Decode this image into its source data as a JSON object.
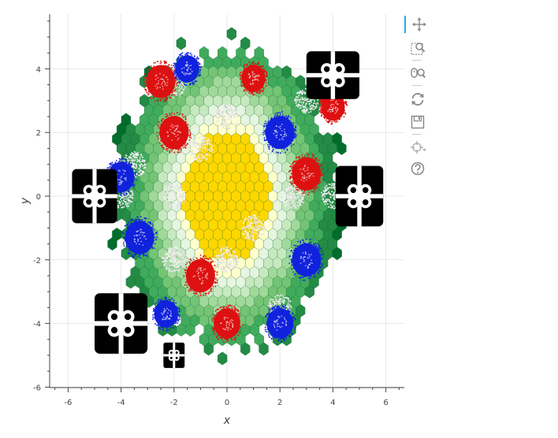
{
  "chart_data": {
    "type": "heatmap",
    "xlabel": "x",
    "ylabel": "y",
    "xlim": [
      -6.7,
      6.7
    ],
    "ylim": [
      -6.2,
      5.7
    ],
    "x_ticks": [
      -6,
      -4,
      -2,
      0,
      2,
      4,
      6
    ],
    "y_ticks": [
      -6,
      -4,
      -2,
      0,
      2,
      4
    ],
    "grid": true,
    "hex_palette": [
      "#00441b",
      "#006d2c",
      "#238b45",
      "#41ab5d",
      "#74c476",
      "#a1d99b",
      "#c7e9c0",
      "#e5f5e0",
      "#ffffcc",
      "#ffd700"
    ],
    "tree_radius": 4.3,
    "ornaments": [
      {
        "x": -2.5,
        "y": 3.6,
        "r": 0.55,
        "color": "#dd1111"
      },
      {
        "x": -1.5,
        "y": 4.0,
        "r": 0.45,
        "color": "#1122dd"
      },
      {
        "x": 1.0,
        "y": 3.7,
        "r": 0.45,
        "color": "#dd1111"
      },
      {
        "x": -2.0,
        "y": 2.0,
        "r": 0.55,
        "color": "#dd1111"
      },
      {
        "x": 2.0,
        "y": 2.0,
        "r": 0.55,
        "color": "#1122dd"
      },
      {
        "x": 4.0,
        "y": 2.8,
        "r": 0.45,
        "color": "#dd1111"
      },
      {
        "x": 3.0,
        "y": 0.7,
        "r": 0.55,
        "color": "#dd1111"
      },
      {
        "x": -4.0,
        "y": 0.6,
        "r": 0.5,
        "color": "#1122dd"
      },
      {
        "x": -3.3,
        "y": -1.3,
        "r": 0.55,
        "color": "#1122dd"
      },
      {
        "x": 3.0,
        "y": -2.0,
        "r": 0.55,
        "color": "#1122dd"
      },
      {
        "x": -1.0,
        "y": -2.5,
        "r": 0.55,
        "color": "#dd1111"
      },
      {
        "x": -2.3,
        "y": -3.7,
        "r": 0.45,
        "color": "#1122dd"
      },
      {
        "x": 0.0,
        "y": -4.0,
        "r": 0.5,
        "color": "#dd1111"
      },
      {
        "x": 2.0,
        "y": -4.0,
        "r": 0.5,
        "color": "#1122dd"
      }
    ],
    "snow": [
      {
        "x": 0.0,
        "y": 2.5
      },
      {
        "x": -1.0,
        "y": 1.5
      },
      {
        "x": -3.5,
        "y": 1.0
      },
      {
        "x": -4.0,
        "y": 0.0
      },
      {
        "x": -2.0,
        "y": 0.0
      },
      {
        "x": 2.5,
        "y": 0.0
      },
      {
        "x": 4.0,
        "y": 0.0
      },
      {
        "x": 1.0,
        "y": -1.0
      },
      {
        "x": -2.0,
        "y": -2.0
      },
      {
        "x": 0.0,
        "y": -2.0
      },
      {
        "x": 3.0,
        "y": 3.0
      },
      {
        "x": -2.0,
        "y": 3.5
      },
      {
        "x": 2.0,
        "y": -3.5
      },
      {
        "x": 0.0,
        "y": 0.0
      }
    ],
    "presents": [
      {
        "x": 4.0,
        "y": 3.8,
        "w": 2.0,
        "h": 1.5
      },
      {
        "x": -5.0,
        "y": 0.0,
        "w": 1.7,
        "h": 1.7
      },
      {
        "x": 5.0,
        "y": 0.0,
        "w": 1.8,
        "h": 1.9
      },
      {
        "x": -4.0,
        "y": -4.0,
        "w": 2.0,
        "h": 1.9
      },
      {
        "x": -2.0,
        "y": -5.0,
        "w": 0.8,
        "h": 0.8
      }
    ]
  },
  "toolbar": {
    "tools": [
      {
        "name": "pan-tool",
        "icon": "move-icon",
        "active": true
      },
      {
        "name": "box-zoom-tool",
        "icon": "box-zoom-icon",
        "active": false
      },
      {
        "name": "wheel-zoom-tool",
        "icon": "wheel-zoom-icon",
        "active": false
      },
      {
        "name": "reset-tool",
        "icon": "reset-icon",
        "active": false
      },
      {
        "name": "save-tool",
        "icon": "save-icon",
        "active": false
      },
      {
        "name": "hover-tool",
        "icon": "crosshair-icon",
        "active": false
      },
      {
        "name": "help-tool",
        "icon": "help-icon",
        "active": false
      }
    ]
  }
}
